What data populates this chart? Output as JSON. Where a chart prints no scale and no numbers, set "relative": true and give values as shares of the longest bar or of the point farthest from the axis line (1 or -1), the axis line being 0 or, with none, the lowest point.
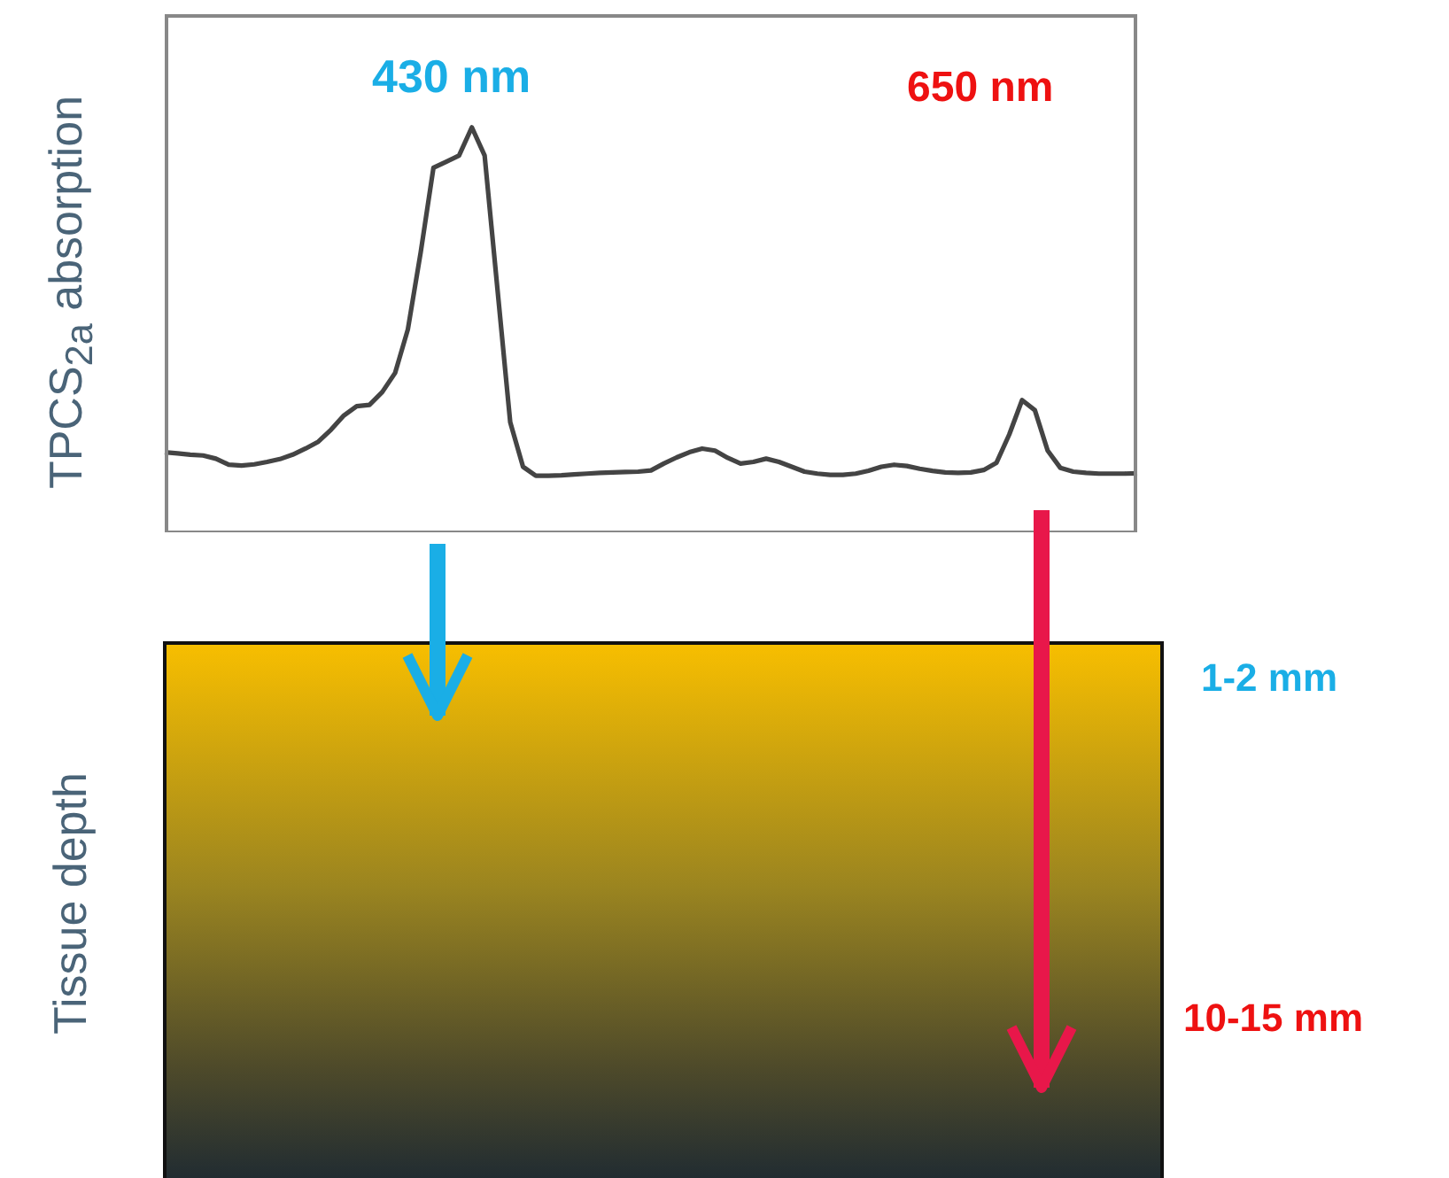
{
  "chart_data": {
    "type": "line",
    "relative": true,
    "ylabel": "TPCS$_{2a}$ absorption",
    "marker": "none",
    "line_style": "solid",
    "categories": [
      null,
      null,
      null,
      null,
      null,
      null,
      null,
      null,
      null,
      null,
      null,
      null,
      null,
      null,
      null,
      null,
      null,
      null,
      null,
      null,
      null,
      null,
      null,
      null,
      null,
      null,
      null,
      null,
      null,
      null,
      null,
      null,
      null,
      null,
      null,
      null,
      null,
      null,
      null,
      null,
      null,
      null,
      null,
      null,
      null,
      null,
      null,
      null,
      null,
      null,
      null,
      null,
      null,
      null,
      null,
      null,
      null,
      null,
      null,
      null,
      null,
      null,
      null,
      null,
      null,
      null,
      null,
      null,
      null,
      null,
      null,
      null,
      null,
      null,
      null,
      null,
      null
    ],
    "series": [
      {
        "color": "#444444",
        "values": [
          0.196,
          0.193,
          0.19,
          0.188,
          0.18,
          0.165,
          0.163,
          0.166,
          0.172,
          0.179,
          0.19,
          0.205,
          0.222,
          0.252,
          0.287,
          0.31,
          0.313,
          0.345,
          0.392,
          0.5,
          0.69,
          0.9,
          0.915,
          0.93,
          1.0,
          0.93,
          0.6,
          0.27,
          0.16,
          0.138,
          0.138,
          0.139,
          0.141,
          0.143,
          0.145,
          0.146,
          0.147,
          0.148,
          0.151,
          0.168,
          0.183,
          0.196,
          0.205,
          0.2,
          0.182,
          0.168,
          0.172,
          0.18,
          0.172,
          0.16,
          0.148,
          0.143,
          0.14,
          0.14,
          0.143,
          0.15,
          0.16,
          0.165,
          0.162,
          0.155,
          0.15,
          0.146,
          0.145,
          0.146,
          0.152,
          0.17,
          0.24,
          0.325,
          0.3,
          0.2,
          0.157,
          0.148,
          0.145,
          0.143,
          0.143,
          0.143,
          0.144
        ]
      }
    ],
    "annotations": [
      "430 nm",
      "650 nm",
      "Tissue depth",
      "1-2 mm",
      "10-15 mm"
    ]
  }
}
